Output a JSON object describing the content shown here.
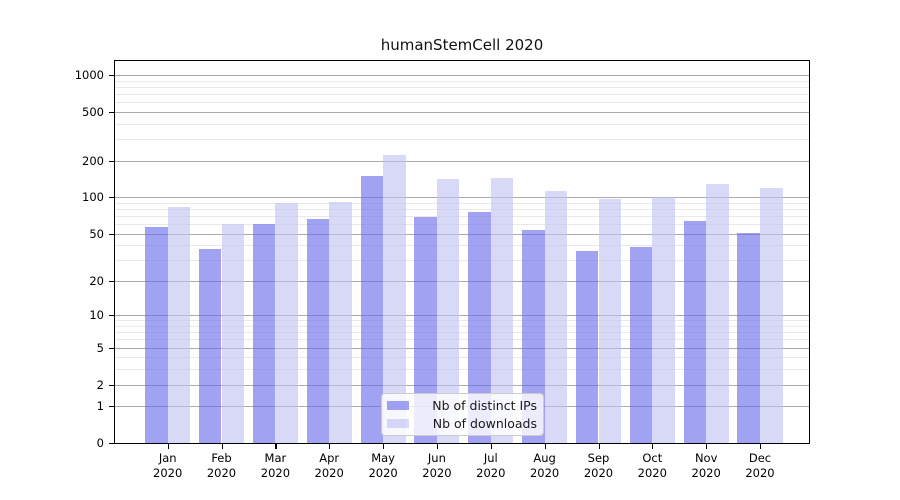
{
  "title": "humanStemCell 2020",
  "chart_data": {
    "type": "bar",
    "title": "humanStemCell 2020",
    "xlabel": "",
    "ylabel": "",
    "categories": [
      "Jan 2020",
      "Feb 2020",
      "Mar 2020",
      "Apr 2020",
      "May 2020",
      "Jun 2020",
      "Jul 2020",
      "Aug 2020",
      "Sep 2020",
      "Oct 2020",
      "Nov 2020",
      "Dec 2020"
    ],
    "series": [
      {
        "name": "Nb of distinct IPs",
        "color": "rgba(105,105,235,0.62)",
        "values": [
          57,
          37,
          60,
          66,
          149,
          68,
          76,
          54,
          36,
          39,
          64,
          51
        ]
      },
      {
        "name": "Nb of downloads",
        "color": "rgba(192,192,242,0.62)",
        "values": [
          83,
          60,
          90,
          92,
          220,
          140,
          144,
          112,
          96,
          100,
          129,
          120
        ]
      }
    ],
    "y_scale": "log10(value+1)",
    "y_ticks": [
      0,
      1,
      2,
      5,
      10,
      20,
      50,
      100,
      200,
      500,
      1000
    ],
    "y_minor_ticks": [
      3,
      4,
      6,
      7,
      8,
      9,
      30,
      40,
      60,
      70,
      80,
      90,
      300,
      400,
      600,
      700,
      800,
      900
    ],
    "ylim": [
      0,
      1300
    ],
    "grid": true,
    "legend_position": "inside lower-center"
  },
  "colors": {
    "major_grid": "#ababab",
    "minor_grid": "#e9e9e9",
    "axis": "#000000",
    "legend_border": "#cccccc"
  }
}
